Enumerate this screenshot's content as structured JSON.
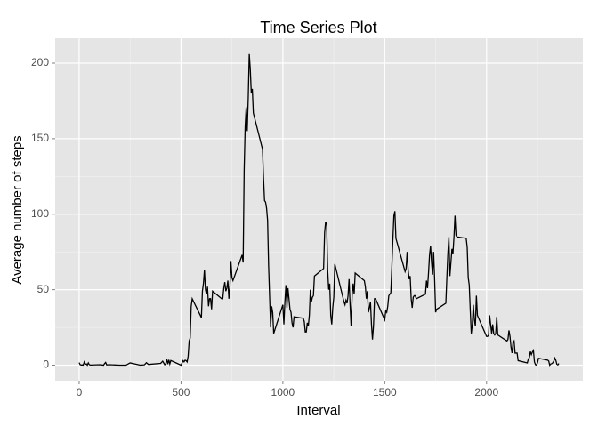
{
  "chart_data": {
    "type": "line",
    "title": "Time Series Plot",
    "x_label": "Interval",
    "y_label": "Average number of steps",
    "color": "#000000",
    "grid": true,
    "xlim": [
      -117.75,
      2472.75
    ],
    "ylim": [
      -10.3,
      216.5
    ],
    "xticks": [
      0,
      500,
      1000,
      1500,
      2000
    ],
    "yticks": [
      0,
      50,
      100,
      150,
      200
    ],
    "xminorticks": [
      250,
      750,
      1250,
      1750,
      2250
    ],
    "yminorticks": [
      25,
      75,
      125,
      175
    ],
    "x": [
      0,
      5,
      10,
      15,
      20,
      25,
      30,
      35,
      40,
      45,
      50,
      55,
      100,
      110,
      120,
      125,
      130,
      135,
      150,
      200,
      230,
      250,
      300,
      320,
      330,
      340,
      400,
      410,
      420,
      425,
      430,
      435,
      440,
      445,
      450,
      500,
      510,
      515,
      520,
      525,
      530,
      535,
      540,
      545,
      550,
      555,
      600,
      605,
      610,
      615,
      620,
      625,
      630,
      635,
      640,
      645,
      650,
      655,
      700,
      705,
      710,
      715,
      720,
      725,
      730,
      735,
      740,
      745,
      750,
      755,
      800,
      805,
      810,
      815,
      820,
      825,
      830,
      835,
      840,
      845,
      850,
      855,
      900,
      905,
      910,
      915,
      920,
      925,
      930,
      935,
      940,
      945,
      950,
      955,
      1000,
      1005,
      1010,
      1015,
      1020,
      1025,
      1030,
      1035,
      1040,
      1045,
      1050,
      1055,
      1100,
      1105,
      1110,
      1115,
      1120,
      1125,
      1130,
      1135,
      1140,
      1145,
      1150,
      1155,
      1200,
      1205,
      1210,
      1215,
      1220,
      1225,
      1230,
      1235,
      1240,
      1245,
      1250,
      1255,
      1300,
      1305,
      1310,
      1315,
      1320,
      1325,
      1330,
      1335,
      1340,
      1345,
      1350,
      1355,
      1400,
      1405,
      1410,
      1415,
      1420,
      1425,
      1430,
      1435,
      1440,
      1445,
      1450,
      1455,
      1500,
      1505,
      1510,
      1515,
      1520,
      1525,
      1530,
      1535,
      1540,
      1545,
      1550,
      1555,
      1600,
      1605,
      1610,
      1615,
      1620,
      1625,
      1630,
      1635,
      1640,
      1645,
      1650,
      1655,
      1700,
      1705,
      1710,
      1715,
      1720,
      1725,
      1730,
      1735,
      1740,
      1745,
      1750,
      1755,
      1800,
      1805,
      1810,
      1815,
      1820,
      1825,
      1830,
      1835,
      1840,
      1845,
      1850,
      1855,
      1900,
      1905,
      1910,
      1915,
      1920,
      1925,
      1930,
      1935,
      1940,
      1945,
      1950,
      1955,
      2000,
      2005,
      2010,
      2015,
      2020,
      2025,
      2030,
      2035,
      2040,
      2045,
      2050,
      2055,
      2100,
      2105,
      2110,
      2115,
      2120,
      2125,
      2130,
      2135,
      2140,
      2145,
      2150,
      2155,
      2200,
      2205,
      2210,
      2215,
      2220,
      2225,
      2230,
      2235,
      2240,
      2245,
      2250,
      2255,
      2300,
      2305,
      2310,
      2315,
      2320,
      2325,
      2330,
      2335,
      2340,
      2345,
      2350,
      2355
    ],
    "values": [
      1.7,
      0.3,
      0.1,
      0.2,
      0.1,
      2.1,
      0.5,
      0.9,
      0,
      1.5,
      0.3,
      0.1,
      0.3,
      0.2,
      0,
      1.1,
      1.8,
      0.2,
      0.3,
      0,
      0,
      1.5,
      0,
      0.2,
      1.6,
      0.5,
      1.2,
      2.6,
      0.3,
      0.9,
      4.1,
      0.7,
      3.5,
      0.8,
      3.1,
      0,
      3,
      2.2,
      3.3,
      3,
      2.1,
      6,
      16,
      18,
      39,
      44,
      31.5,
      49,
      54,
      63,
      50,
      47,
      52,
      39,
      44,
      44,
      37,
      49,
      44,
      44,
      51,
      55,
      49,
      51,
      56,
      44,
      52,
      69,
      58,
      56,
      73,
      68,
      129,
      158,
      171,
      155,
      177,
      206,
      196,
      180,
      183,
      167,
      143,
      124,
      109,
      108,
      104,
      96,
      66,
      45,
      25,
      39,
      35,
      21,
      40,
      27,
      42,
      53,
      38,
      51,
      44,
      37,
      35,
      28,
      25,
      32,
      31,
      29,
      22,
      22,
      28,
      26,
      33,
      50,
      42,
      45,
      46,
      59,
      64,
      88,
      95,
      93,
      63,
      50,
      54,
      33,
      27,
      38,
      45,
      67,
      42,
      40,
      43,
      41,
      46,
      57,
      40,
      26,
      46,
      54,
      47,
      61,
      56,
      52,
      44,
      49,
      35,
      38,
      42,
      27,
      17,
      26,
      44,
      44,
      30,
      36,
      35,
      39,
      46,
      47,
      48,
      65,
      83,
      99,
      102,
      84,
      62,
      64,
      75,
      63,
      57,
      59,
      44,
      38,
      45,
      46,
      46,
      44,
      47,
      56,
      51,
      61,
      73,
      79,
      68,
      60,
      75,
      57,
      35,
      37,
      41,
      58,
      74,
      85,
      59,
      68,
      77,
      74,
      85,
      99,
      86,
      85,
      84,
      78,
      58,
      53,
      36,
      21,
      27,
      40,
      30,
      26,
      46,
      33,
      19,
      19,
      20,
      33,
      27,
      21,
      27,
      21,
      20,
      21,
      32,
      20,
      16,
      17,
      23,
      19,
      12,
      8,
      15,
      16,
      8,
      8,
      8,
      3,
      1.5,
      4,
      5,
      9,
      7,
      8.7,
      9.8,
      2.2,
      0.3,
      0.1,
      1.6,
      4.6,
      3.3,
      2.8,
      0,
      0.8,
      1,
      1.6,
      2.6,
      4.7,
      3.3,
      0.6,
      0.2,
      1.1
    ]
  }
}
